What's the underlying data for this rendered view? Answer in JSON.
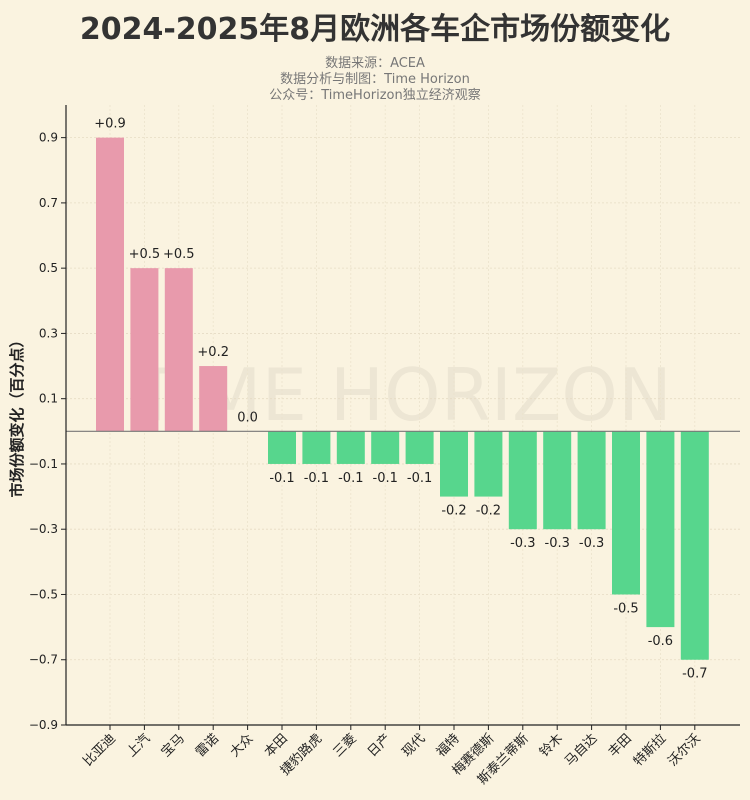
{
  "chart_data": {
    "type": "bar",
    "title": "2024-2025年8月欧洲各车企市场份额变化",
    "subtitles": [
      "数据来源：ACEA",
      "数据分析与制图：Time Horizon",
      "公众号：TimeHorizon独立经济观察"
    ],
    "watermark": "TIME HORIZON",
    "xlabel": "",
    "ylabel": "市场份额变化（百分点）",
    "ylim": [
      -0.9,
      1.0
    ],
    "yticks": [
      -0.9,
      -0.7,
      -0.5,
      -0.3,
      -0.1,
      0.1,
      0.3,
      0.5,
      0.7,
      0.9
    ],
    "grid": true,
    "categories": [
      "比亚迪",
      "上汽",
      "宝马",
      "雷诺",
      "大众",
      "本田",
      "捷豹路虎",
      "三菱",
      "日产",
      "现代",
      "福特",
      "梅赛德斯",
      "斯泰兰蒂斯",
      "铃木",
      "马自达",
      "丰田",
      "特斯拉",
      "沃尔沃"
    ],
    "values": [
      0.9,
      0.5,
      0.5,
      0.2,
      0.0,
      -0.1,
      -0.1,
      -0.1,
      -0.1,
      -0.1,
      -0.2,
      -0.2,
      -0.3,
      -0.3,
      -0.3,
      -0.5,
      -0.6,
      -0.7
    ],
    "data_labels": [
      "+0.9",
      "+0.5",
      "+0.5",
      "+0.2",
      "0.0",
      "-0.1",
      "-0.1",
      "-0.1",
      "-0.1",
      "-0.1",
      "-0.2",
      "-0.2",
      "-0.3",
      "-0.3",
      "-0.3",
      "-0.5",
      "-0.6",
      "-0.7"
    ],
    "colors": {
      "positive": "#e89aac",
      "negative": "#57d68d",
      "background": "#faf3e0"
    }
  }
}
